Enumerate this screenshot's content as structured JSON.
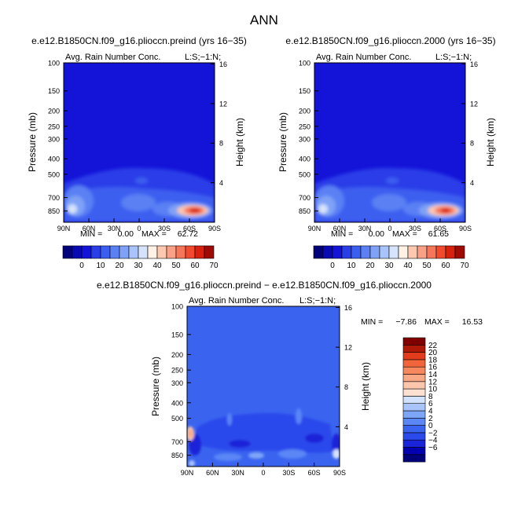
{
  "page": {
    "title": "ANN"
  },
  "colors": {
    "panel_1_2": [
      "#02027a",
      "#0a0ab4",
      "#1414d9",
      "#2a3ee8",
      "#3c5ef0",
      "#5a80f4",
      "#7fa2f7",
      "#a9c4fa",
      "#d6e3fc",
      "#fff1e6",
      "#fcc8b0",
      "#f9a086",
      "#f6765a",
      "#f24a2e",
      "#d8200f",
      "#a00a05"
    ],
    "diff": [
      "#00007a",
      "#0000b0",
      "#1a24d8",
      "#2a4aec",
      "#3a64f0",
      "#5a86f6",
      "#7ea6f8",
      "#a8c4fa",
      "#d2e2fc",
      "#fde0d0",
      "#fbc6ac",
      "#f9a886",
      "#f7885e",
      "#f2653a",
      "#e23c1c",
      "#b01808",
      "#800000"
    ]
  },
  "chart_data": [
    {
      "type": "heatmap",
      "title": "e.e12.B1850CN.f09_g16.plioccn.preind (yrs 16−35)",
      "subtitle": "Avg. Rain Number Conc.",
      "corner_label": "L:S;−1:N;",
      "xlabel": "",
      "ylabel": "Pressure (mb)",
      "y2label": "Height (km)",
      "xticks": [
        "90N",
        "60N",
        "30N",
        "0",
        "30S",
        "60S",
        "90S"
      ],
      "yticks": [
        100,
        150,
        200,
        250,
        300,
        400,
        500,
        700,
        850
      ],
      "y2ticks": [
        16,
        12,
        8,
        4
      ],
      "stats": {
        "min_label": "MIN =",
        "min": "0.00",
        "max_label": "MAX =",
        "max": "62.72"
      },
      "colorbar_labels": [
        "0",
        "10",
        "20",
        "30",
        "40",
        "50",
        "60",
        "70"
      ]
    },
    {
      "type": "heatmap",
      "title": "e.e12.B1850CN.f09_g16.plioccn.2000 (yrs 16−35)",
      "subtitle": "Avg. Rain Number Conc.",
      "corner_label": "L:S;−1:N;",
      "xlabel": "",
      "ylabel": "Pressure (mb)",
      "y2label": "Height (km)",
      "xticks": [
        "90N",
        "60N",
        "30N",
        "0",
        "30S",
        "60S",
        "90S"
      ],
      "yticks": [
        100,
        150,
        200,
        250,
        300,
        400,
        500,
        700,
        850
      ],
      "y2ticks": [
        16,
        12,
        8,
        4
      ],
      "stats": {
        "min_label": "MIN =",
        "min": "0.00",
        "max_label": "MAX =",
        "max": "61.65"
      },
      "colorbar_labels": [
        "0",
        "10",
        "20",
        "30",
        "40",
        "50",
        "60",
        "70"
      ]
    },
    {
      "type": "heatmap",
      "title": "e.e12.B1850CN.f09_g16.plioccn.preind − e.e12.B1850CN.f09_g16.plioccn.2000",
      "subtitle": "Avg. Rain Number Conc.",
      "corner_label": "L:S;−1:N;",
      "xlabel": "",
      "ylabel": "Pressure (mb)",
      "y2label": "Height (km)",
      "xticks": [
        "90N",
        "60N",
        "30N",
        "0",
        "30S",
        "60S",
        "90S"
      ],
      "yticks": [
        100,
        150,
        200,
        250,
        300,
        400,
        500,
        700,
        850
      ],
      "y2ticks": [
        16,
        12,
        8,
        4
      ],
      "stats": {
        "min_label": "MIN =",
        "min": "−7.86",
        "max_label": "MAX =",
        "max": "16.53"
      },
      "colorbar_labels": [
        "22",
        "20",
        "18",
        "16",
        "14",
        "12",
        "10",
        "8",
        "6",
        "4",
        "2",
        "0",
        "−2",
        "−4",
        "−6"
      ]
    }
  ]
}
